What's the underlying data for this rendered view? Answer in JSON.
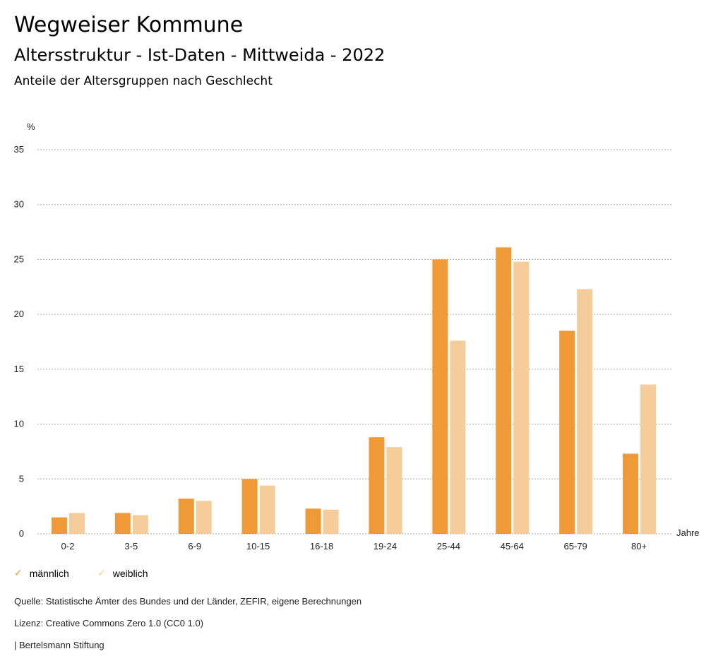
{
  "header": {
    "title": "Wegweiser Kommune",
    "subtitle": "Altersstruktur - Ist-Daten - Mittweida - 2022",
    "chart_title": "Anteile der Altersgruppen nach Geschlecht"
  },
  "chart_data": {
    "type": "bar",
    "title": "Anteile der Altersgruppen nach Geschlecht",
    "ylabel": "%",
    "xlabel": "Jahre",
    "ylim": [
      0,
      35
    ],
    "yticks": [
      0,
      5,
      10,
      15,
      20,
      25,
      30,
      35
    ],
    "grid": true,
    "categories": [
      "0-2",
      "3-5",
      "6-9",
      "10-15",
      "16-18",
      "19-24",
      "25-44",
      "45-64",
      "65-79",
      "80+"
    ],
    "series": [
      {
        "name": "männlich",
        "color": "#EF9A36",
        "values": [
          1.5,
          1.9,
          3.2,
          5.0,
          2.3,
          8.8,
          25.0,
          26.1,
          18.5,
          7.3
        ]
      },
      {
        "name": "weiblich",
        "color": "#F5CC9A",
        "values": [
          1.9,
          1.7,
          3.0,
          4.4,
          2.2,
          7.9,
          17.6,
          24.8,
          22.3,
          13.6
        ]
      }
    ],
    "legend": "bottom-left"
  },
  "footer": {
    "source": "Quelle: Statistische Ämter des Bundes und der Länder, ZEFIR, eigene Berechnungen",
    "license": "Lizenz: Creative Commons Zero 1.0 (CC0 1.0)",
    "brand": "| Bertelsmann Stiftung"
  }
}
